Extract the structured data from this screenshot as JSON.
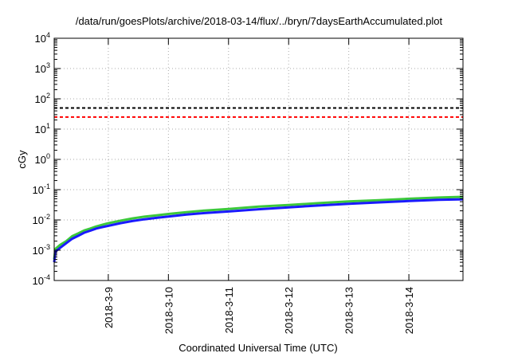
{
  "chart_data": {
    "type": "line",
    "title": "/data/run/goesPlots/archive/2018-03-14/flux/../bryn/7daysEarthAccumulated.plot",
    "xlabel": "Coordinated Universal Time (UTC)",
    "ylabel": "cGy",
    "y_scale": "log",
    "ylim": [
      0.0001,
      10000
    ],
    "y_ticks": [
      {
        "value": 0.0001,
        "base": "10",
        "exp": "-4"
      },
      {
        "value": 0.001,
        "base": "10",
        "exp": "-3"
      },
      {
        "value": 0.01,
        "base": "10",
        "exp": "-2"
      },
      {
        "value": 0.1,
        "base": "10",
        "exp": "-1"
      },
      {
        "value": 1,
        "base": "10",
        "exp": "0"
      },
      {
        "value": 10,
        "base": "10",
        "exp": "1"
      },
      {
        "value": 100,
        "base": "10",
        "exp": "2"
      },
      {
        "value": 1000,
        "base": "10",
        "exp": "3"
      },
      {
        "value": 10000,
        "base": "10",
        "exp": "4"
      }
    ],
    "xlim": [
      8.1,
      14.9
    ],
    "x_ticks": [
      {
        "value": 9,
        "label": "2018-3-9"
      },
      {
        "value": 10,
        "label": "2018-3-10"
      },
      {
        "value": 11,
        "label": "2018-3-11"
      },
      {
        "value": 12,
        "label": "2018-3-12"
      },
      {
        "value": 13,
        "label": "2018-3-13"
      },
      {
        "value": 14,
        "label": "2018-3-14"
      }
    ],
    "grid": true,
    "reference_lines": [
      {
        "y": 50,
        "color": "#000000",
        "style": "dashed"
      },
      {
        "y": 25,
        "color": "#ff0000",
        "style": "dashed"
      }
    ],
    "series": [
      {
        "color": "#3cc83c",
        "x": [
          8.1,
          8.12,
          8.2,
          8.3,
          8.4,
          8.5,
          8.6,
          8.7,
          8.8,
          8.9,
          9.0,
          9.2,
          9.4,
          9.6,
          9.8,
          10.0,
          10.3,
          10.6,
          11.0,
          11.5,
          12.0,
          12.5,
          13.0,
          13.5,
          14.0,
          14.5,
          14.9
        ],
        "y": [
          0.0005,
          0.0011,
          0.0015,
          0.002,
          0.0029,
          0.0036,
          0.0045,
          0.0052,
          0.0061,
          0.0069,
          0.0078,
          0.0094,
          0.0112,
          0.0128,
          0.0142,
          0.0158,
          0.018,
          0.0205,
          0.023,
          0.0275,
          0.031,
          0.036,
          0.041,
          0.045,
          0.05,
          0.055,
          0.058
        ]
      },
      {
        "color": "#1a1aff",
        "x": [
          8.1,
          8.12,
          8.2,
          8.3,
          8.4,
          8.5,
          8.6,
          8.7,
          8.8,
          8.9,
          9.0,
          9.2,
          9.4,
          9.6,
          9.8,
          10.0,
          10.3,
          10.6,
          11.0,
          11.5,
          12.0,
          12.5,
          13.0,
          13.5,
          14.0,
          14.5,
          14.9
        ],
        "y": [
          0.0004,
          0.0009,
          0.0012,
          0.0017,
          0.0024,
          0.003,
          0.0038,
          0.0044,
          0.0052,
          0.0058,
          0.0064,
          0.0078,
          0.0092,
          0.0105,
          0.0117,
          0.013,
          0.015,
          0.0168,
          0.019,
          0.0225,
          0.026,
          0.03,
          0.034,
          0.038,
          0.042,
          0.046,
          0.048
        ]
      }
    ]
  }
}
